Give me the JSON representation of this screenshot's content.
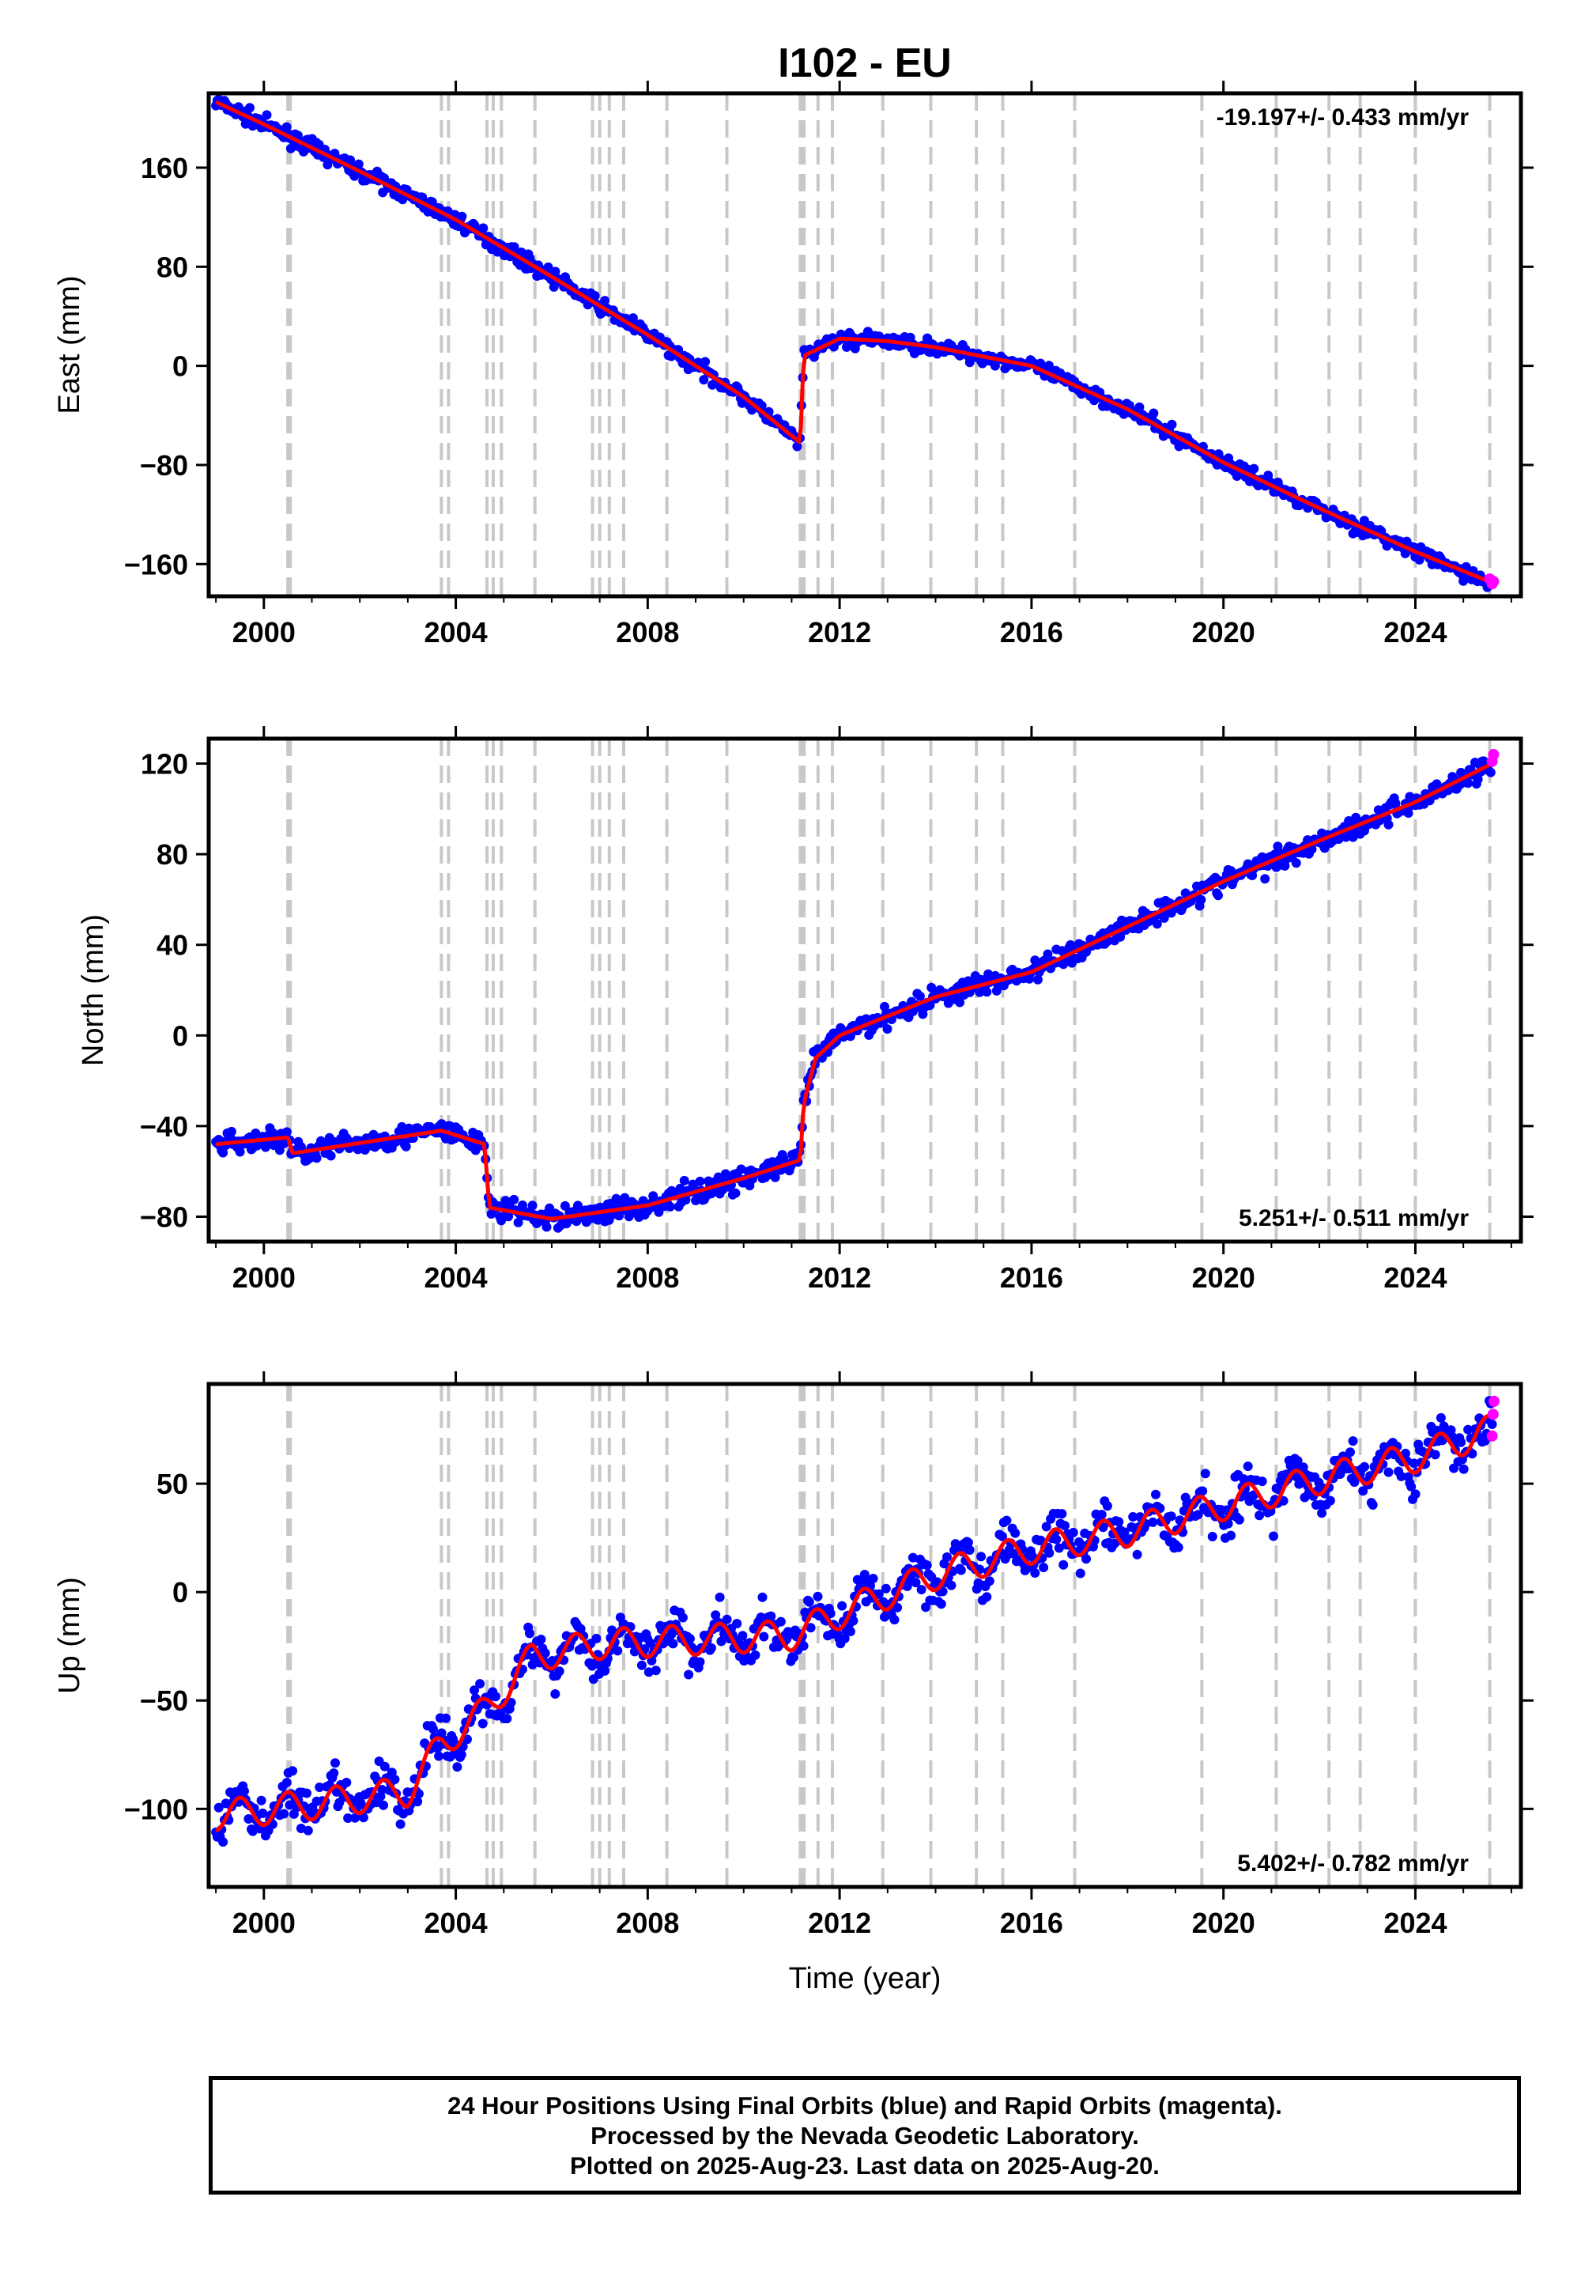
{
  "chart_data": [
    {
      "type": "scatter",
      "title": "I102 - EU",
      "xlabel": "",
      "ylabel": "East (mm)",
      "xlim": [
        1998.85,
        2026.2
      ],
      "ylim": [
        -186,
        220
      ],
      "xticks": [
        "2000",
        "2004",
        "2008",
        "2012",
        "2016",
        "2020",
        "2024"
      ],
      "yticks": [
        "160",
        "80",
        "0",
        "−80",
        "−160"
      ],
      "yticks_values": [
        160,
        80,
        0,
        -80,
        -160
      ],
      "rate_label": "-19.197+/- 0.433 mm/yr",
      "rate_position": "top-right",
      "series": [
        {
          "name": "Final Orbits",
          "color": "#0000ff",
          "x": [
            1999.0,
            2000.0,
            2002.0,
            2004.0,
            2006.0,
            2008.0,
            2010.0,
            2011.18,
            2011.25,
            2012.0,
            2013.0,
            2014.0,
            2016.0,
            2018.0,
            2020.0,
            2022.0,
            2024.0,
            2025.5
          ],
          "y": [
            213,
            195,
            157,
            118,
            72,
            25,
            -25,
            -62,
            8,
            22,
            20,
            15,
            0,
            -35,
            -78,
            -115,
            -150,
            -175
          ]
        },
        {
          "name": "Rapid Orbits",
          "color": "#ff00ff",
          "x": [
            2025.55,
            2025.6,
            2025.63
          ],
          "y": [
            -172,
            -176,
            -174
          ]
        },
        {
          "name": "Model",
          "color": "#ff0000",
          "x": [
            1999.0,
            2000.0,
            2002.0,
            2004.0,
            2006.0,
            2008.0,
            2010.0,
            2011.18,
            2011.25,
            2012.0,
            2013.0,
            2014.0,
            2016.0,
            2018.0,
            2020.0,
            2022.0,
            2024.0,
            2025.6
          ],
          "y": [
            213,
            195,
            157,
            118,
            72,
            25,
            -25,
            -62,
            8,
            22,
            20,
            15,
            0,
            -35,
            -78,
            -115,
            -150,
            -175
          ]
        }
      ]
    },
    {
      "type": "scatter",
      "title": "",
      "xlabel": "",
      "ylabel": "North (mm)",
      "xlim": [
        1998.85,
        2026.2
      ],
      "ylim": [
        -91,
        131
      ],
      "xticks": [
        "2000",
        "2004",
        "2008",
        "2012",
        "2016",
        "2020",
        "2024"
      ],
      "yticks": [
        "120",
        "80",
        "40",
        "0",
        "−40",
        "−80"
      ],
      "yticks_values": [
        120,
        80,
        40,
        0,
        -40,
        -80
      ],
      "rate_label": "5.251+/- 0.511 mm/yr",
      "rate_position": "bottom-right",
      "series": [
        {
          "name": "Final Orbits",
          "color": "#0000ff",
          "x": [
            1999.0,
            2000.5,
            2000.6,
            2003.7,
            2004.6,
            2004.7,
            2006.0,
            2008.0,
            2010.0,
            2011.18,
            2011.25,
            2011.5,
            2012.0,
            2014.0,
            2016.0,
            2018.0,
            2020.0,
            2022.0,
            2024.0,
            2025.6
          ],
          "y": [
            -48,
            -45,
            -52,
            -42,
            -48,
            -76,
            -81,
            -75,
            -63,
            -55,
            -30,
            -10,
            0,
            17,
            28,
            48,
            68,
            86,
            103,
            120
          ]
        },
        {
          "name": "Rapid Orbits",
          "color": "#ff00ff",
          "x": [
            2025.6,
            2025.63
          ],
          "y": [
            121,
            124
          ]
        },
        {
          "name": "Model",
          "color": "#ff0000",
          "x": [
            1999.0,
            2000.5,
            2000.6,
            2003.7,
            2004.6,
            2004.7,
            2006.0,
            2008.0,
            2010.0,
            2011.18,
            2011.25,
            2011.5,
            2012.0,
            2014.0,
            2016.0,
            2018.0,
            2020.0,
            2022.0,
            2024.0,
            2025.6
          ],
          "y": [
            -48,
            -45,
            -52,
            -42,
            -48,
            -76,
            -81,
            -75,
            -63,
            -55,
            -30,
            -10,
            0,
            17,
            28,
            48,
            68,
            86,
            103,
            120
          ]
        }
      ]
    },
    {
      "type": "scatter",
      "title": "",
      "xlabel": "Time (year)",
      "ylabel": "Up (mm)",
      "xlim": [
        1998.85,
        2026.2
      ],
      "ylim": [
        -136,
        96
      ],
      "xticks": [
        "2000",
        "2004",
        "2008",
        "2012",
        "2016",
        "2020",
        "2024"
      ],
      "yticks": [
        "50",
        "0",
        "−50",
        "−100"
      ],
      "yticks_values": [
        50,
        0,
        -50,
        -100
      ],
      "rate_label": "5.402+/- 0.782 mm/yr",
      "rate_position": "bottom-right",
      "series": [
        {
          "name": "Final Orbits",
          "color": "#0000ff",
          "x": [
            1999.0,
            2001.0,
            2003.0,
            2003.7,
            2004.6,
            2005.6,
            2007.0,
            2009.0,
            2011.0,
            2012.0,
            2014.0,
            2016.0,
            2018.0,
            2020.0,
            2022.0,
            2024.0,
            2025.6
          ],
          "y": [
            -103,
            -98,
            -92,
            -70,
            -55,
            -30,
            -24,
            -22,
            -20,
            -10,
            8,
            20,
            28,
            40,
            52,
            62,
            75
          ]
        },
        {
          "name": "Rapid Orbits",
          "color": "#ff00ff",
          "x": [
            2025.6,
            2025.62,
            2025.64
          ],
          "y": [
            72,
            82,
            88
          ]
        },
        {
          "name": "Model",
          "color": "#ff0000",
          "x": [
            1999.0,
            2001.0,
            2003.0,
            2003.7,
            2004.6,
            2005.6,
            2007.0,
            2009.0,
            2011.0,
            2012.0,
            2014.0,
            2016.0,
            2018.0,
            2020.0,
            2022.0,
            2024.0,
            2025.6
          ],
          "y": [
            -103,
            -98,
            -92,
            -70,
            -55,
            -30,
            -24,
            -22,
            -20,
            -10,
            8,
            20,
            28,
            40,
            52,
            62,
            75
          ]
        }
      ]
    }
  ],
  "equipment_change_years": [
    2000.5,
    2000.55,
    2003.7,
    2003.85,
    2004.65,
    2004.78,
    2004.95,
    2005.65,
    2006.85,
    2007.0,
    2007.2,
    2007.5,
    2008.4,
    2009.65,
    2011.18,
    2011.22,
    2011.26,
    2011.55,
    2011.85,
    2012.9,
    2013.9,
    2014.85,
    2015.4,
    2016.9,
    2019.55,
    2021.1,
    2022.2,
    2022.85,
    2024.0,
    2025.55
  ],
  "colors": {
    "final_orbits": "#0000ff",
    "rapid_orbits": "#ff00ff",
    "model": "#ff0000",
    "equipment_lines": "#c8c8c8",
    "frame": "#000000"
  },
  "footer": {
    "line1": "24 Hour Positions Using Final Orbits (blue) and Rapid Orbits (magenta).",
    "line2": "Processed by the Nevada Geodetic Laboratory.",
    "line3": "Plotted on 2025-Aug-23. Last data on 2025-Aug-20."
  }
}
